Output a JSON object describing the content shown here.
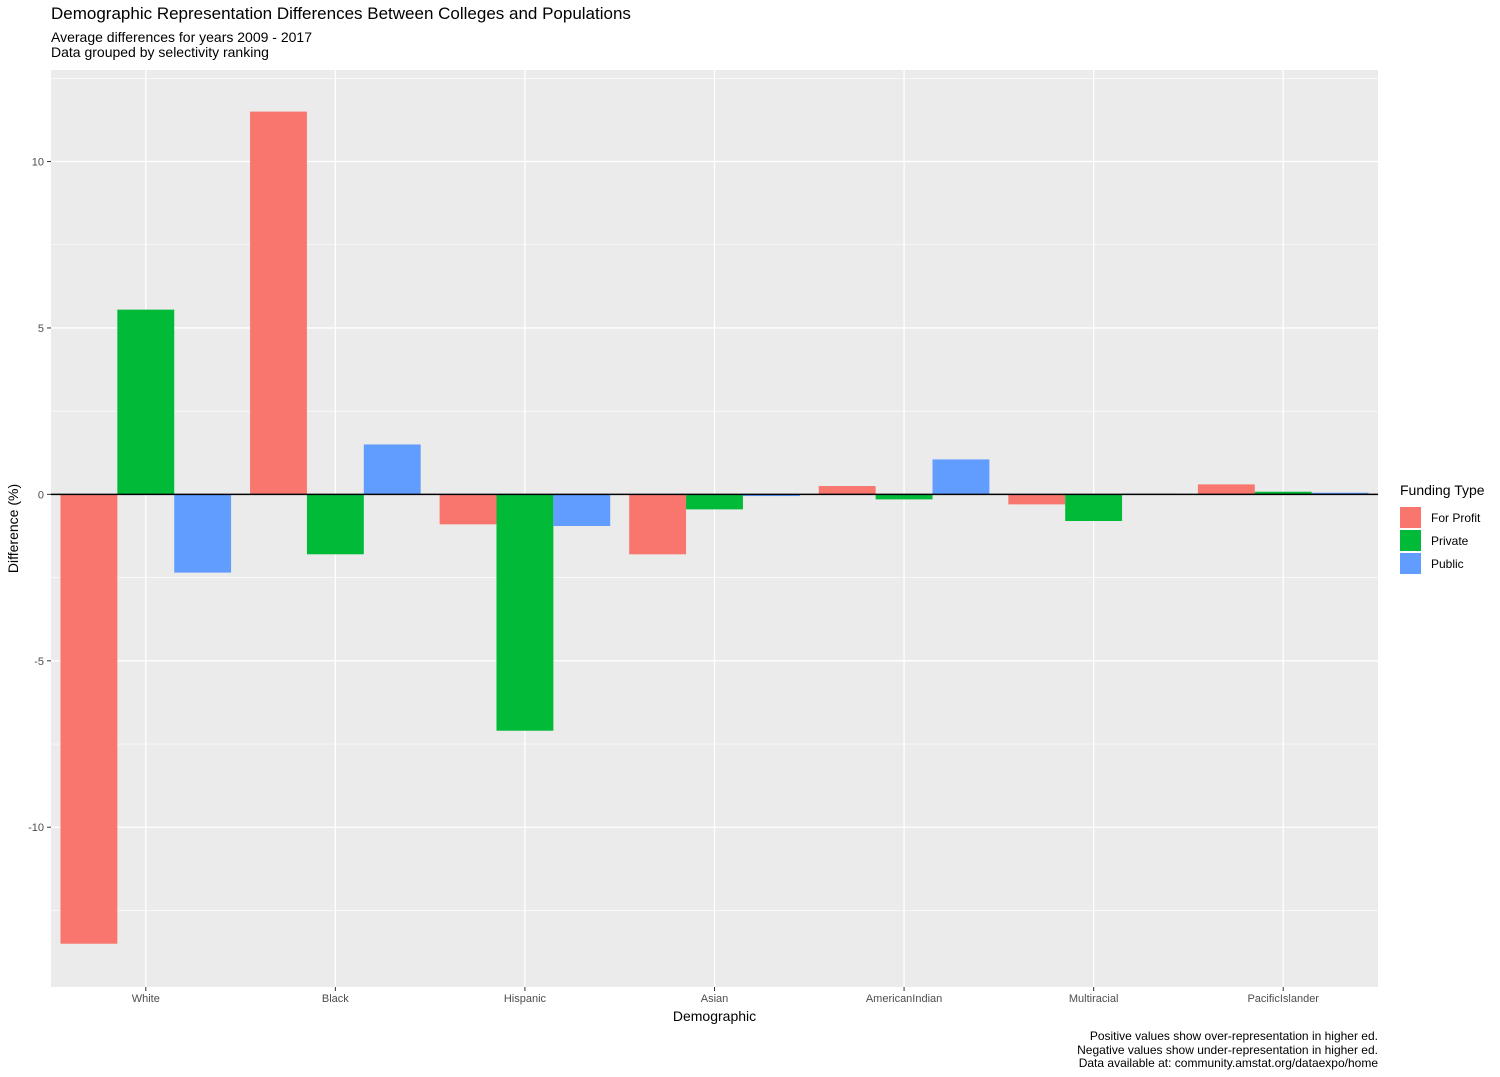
{
  "chart_data": {
    "type": "bar",
    "title": "Demographic Representation Differences Between Colleges and Populations",
    "subtitle_lines": [
      "Average differences for years 2009 - 2017",
      "Data grouped by selectivity ranking"
    ],
    "xlabel": "Demographic",
    "ylabel": "Difference (%)",
    "categories": [
      "White",
      "Black",
      "Hispanic",
      "Asian",
      "AmericanIndian",
      "Multiracial",
      "PacificIslander"
    ],
    "series": [
      {
        "name": "For Profit",
        "color": "#F8766D",
        "values": [
          -13.5,
          11.5,
          -0.9,
          -1.8,
          0.25,
          -0.3,
          0.3
        ]
      },
      {
        "name": "Private",
        "color": "#00BA38",
        "values": [
          5.55,
          -1.8,
          -7.1,
          -0.45,
          -0.15,
          -0.8,
          0.08
        ]
      },
      {
        "name": "Public",
        "color": "#619CFF",
        "values": [
          -2.35,
          1.5,
          -0.95,
          -0.05,
          1.05,
          0.02,
          0.05
        ]
      }
    ],
    "ylim": [
      -14.8,
      12.75
    ],
    "yticks": [
      -10,
      -5,
      0,
      5,
      10
    ],
    "ytick_labels": [
      "-10",
      "-5",
      "0",
      "5",
      "10"
    ],
    "grid": true,
    "legend_title": "Funding Type",
    "legend_position": "right",
    "caption_lines": [
      "Positive values show over-representation in higher ed.",
      "Negative values show under-representation in higher ed.",
      "Data available at: community.amstat.org/dataexpo/home"
    ]
  }
}
